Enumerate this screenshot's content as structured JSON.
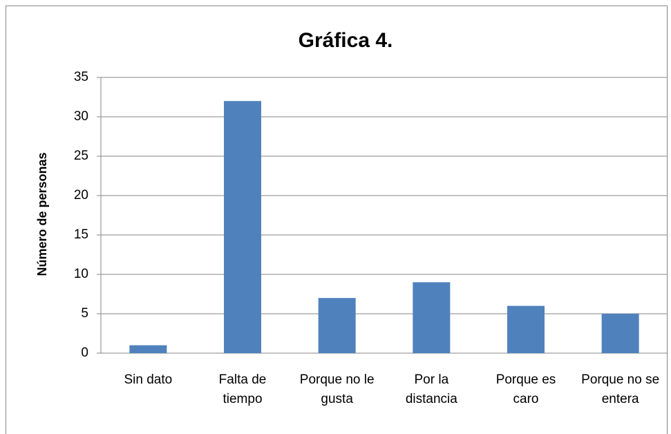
{
  "chart_data": {
    "type": "bar",
    "title": "Gráfica 4.",
    "y_label": "Número de personas",
    "categories": [
      "Sin dato",
      "Falta de tiempo",
      "Porque no le gusta",
      "Por la distancia",
      "Porque es caro",
      "Porque no se entera"
    ],
    "values": [
      1,
      32,
      7,
      9,
      6,
      5
    ],
    "color": "#4f81bd",
    "ylim": [
      0,
      35
    ],
    "yticks": [
      0,
      5,
      10,
      15,
      20,
      25,
      30,
      35
    ],
    "grid": true
  }
}
